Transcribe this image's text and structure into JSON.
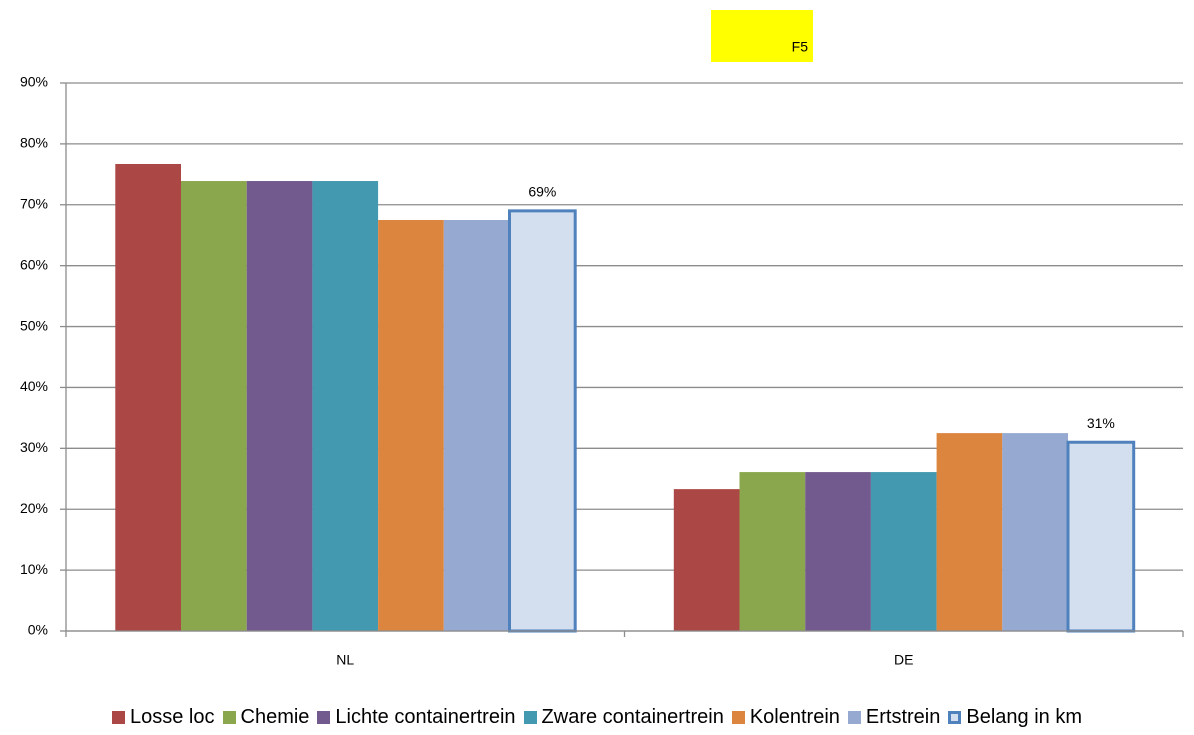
{
  "chart_data": {
    "type": "bar",
    "annotation": "F5",
    "categories": [
      "NL",
      "DE"
    ],
    "series": [
      {
        "name": "Losse loc",
        "color": "#ab4744",
        "values": [
          76.7,
          23.3
        ]
      },
      {
        "name": "Chemie",
        "color": "#8ba74e",
        "values": [
          73.9,
          26.1
        ]
      },
      {
        "name": "Lichte containertrein",
        "color": "#735a8e",
        "values": [
          73.9,
          26.1
        ]
      },
      {
        "name": "Zware containertrein",
        "color": "#4299b0",
        "values": [
          73.9,
          26.1
        ]
      },
      {
        "name": "Kolentrein",
        "color": "#dc853f",
        "values": [
          67.5,
          32.5
        ]
      },
      {
        "name": "Ertstrein",
        "color": "#95a9d1",
        "values": [
          67.5,
          32.5
        ]
      },
      {
        "name": "Belang in km",
        "color": "#d3dfef",
        "edge_color": "#4f81bd",
        "values": [
          69,
          31
        ],
        "value_labels": [
          "69%",
          "31%"
        ]
      }
    ],
    "ylim": [
      0,
      90
    ],
    "yticks": [
      {
        "value": 0,
        "label": "0%"
      },
      {
        "value": 10,
        "label": "10%"
      },
      {
        "value": 20,
        "label": "20%"
      },
      {
        "value": 30,
        "label": "30%"
      },
      {
        "value": 40,
        "label": "40%"
      },
      {
        "value": 50,
        "label": "50%"
      },
      {
        "value": 60,
        "label": "60%"
      },
      {
        "value": 70,
        "label": "70%"
      },
      {
        "value": 80,
        "label": "80%"
      },
      {
        "value": 90,
        "label": "90%"
      }
    ],
    "grid": true,
    "legend": "bottom"
  }
}
